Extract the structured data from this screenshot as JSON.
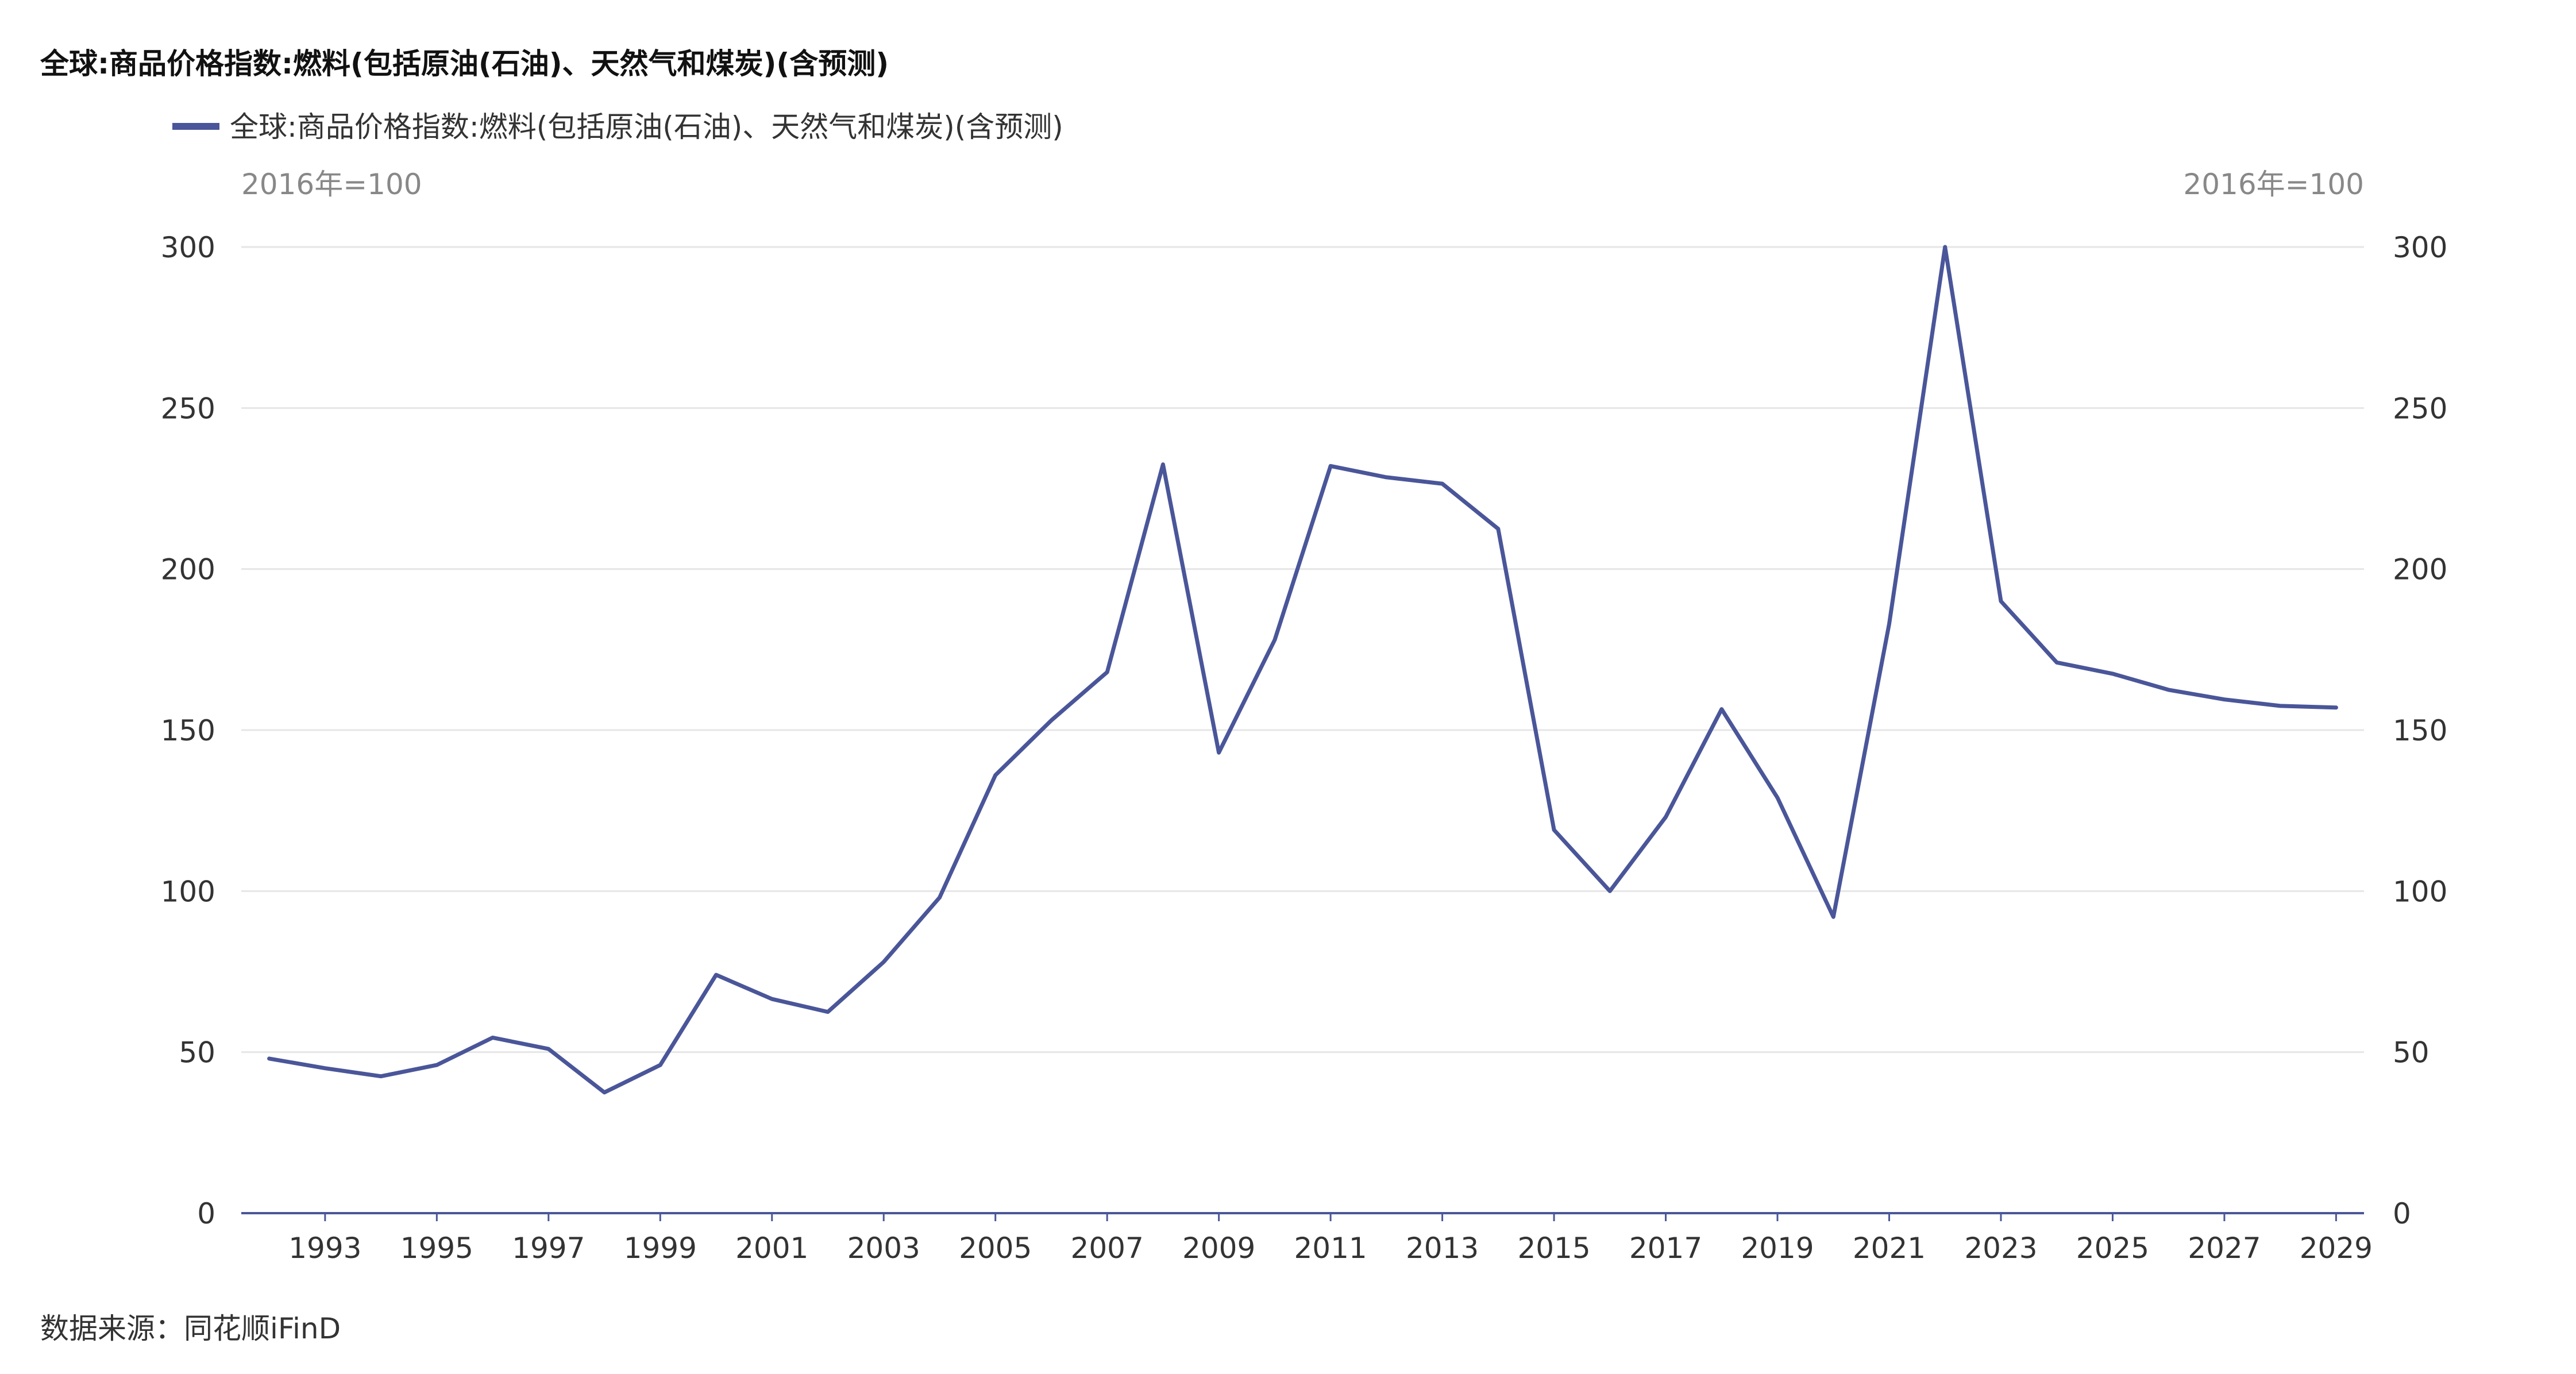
{
  "chart_data": {
    "type": "line",
    "title": "全球:商品价格指数:燃料(包括原油(石油)、天然气和煤炭)(含预测)",
    "y_unit_left": "2016年=100",
    "y_unit_right": "2016年=100",
    "ylim": [
      0,
      300
    ],
    "y_ticks": [
      "0",
      "50",
      "100",
      "150",
      "200",
      "250",
      "300"
    ],
    "y_tick_values": [
      0,
      50,
      100,
      150,
      200,
      250,
      300
    ],
    "x_tick_labels": [
      "1993",
      "1995",
      "1997",
      "1999",
      "2001",
      "2003",
      "2005",
      "2007",
      "2009",
      "2011",
      "2013",
      "2015",
      "2017",
      "2019",
      "2021",
      "2023",
      "2025",
      "2027",
      "2029"
    ],
    "grid": true,
    "legend_position": "top-left",
    "color": "#4a5699",
    "series": [
      {
        "name": "全球:商品价格指数:燃料(包括原油(石油)、天然气和煤炭)(含预测)",
        "x": [
          1992,
          1993,
          1994,
          1995,
          1996,
          1997,
          1998,
          1999,
          2000,
          2001,
          2002,
          2003,
          2004,
          2005,
          2006,
          2007,
          2008,
          2009,
          2010,
          2011,
          2012,
          2013,
          2014,
          2015,
          2016,
          2017,
          2018,
          2019,
          2020,
          2021,
          2022,
          2023,
          2024,
          2025,
          2026,
          2027,
          2028,
          2029
        ],
        "values": [
          48,
          45,
          42.5,
          46,
          54.5,
          51,
          37.5,
          46,
          74,
          66.5,
          62.5,
          78,
          98,
          136,
          153,
          168,
          232.5,
          143,
          178,
          232,
          228.5,
          226.5,
          212.5,
          119,
          100,
          123,
          156.5,
          129,
          92,
          183,
          300,
          190,
          171,
          167.5,
          162.5,
          159.5,
          157.5,
          157
        ]
      }
    ]
  },
  "legend": {
    "label": "全球:商品价格指数:燃料(包括原油(石油)、天然气和煤炭)(含预测)"
  },
  "source": "数据来源：同花顺iFinD"
}
